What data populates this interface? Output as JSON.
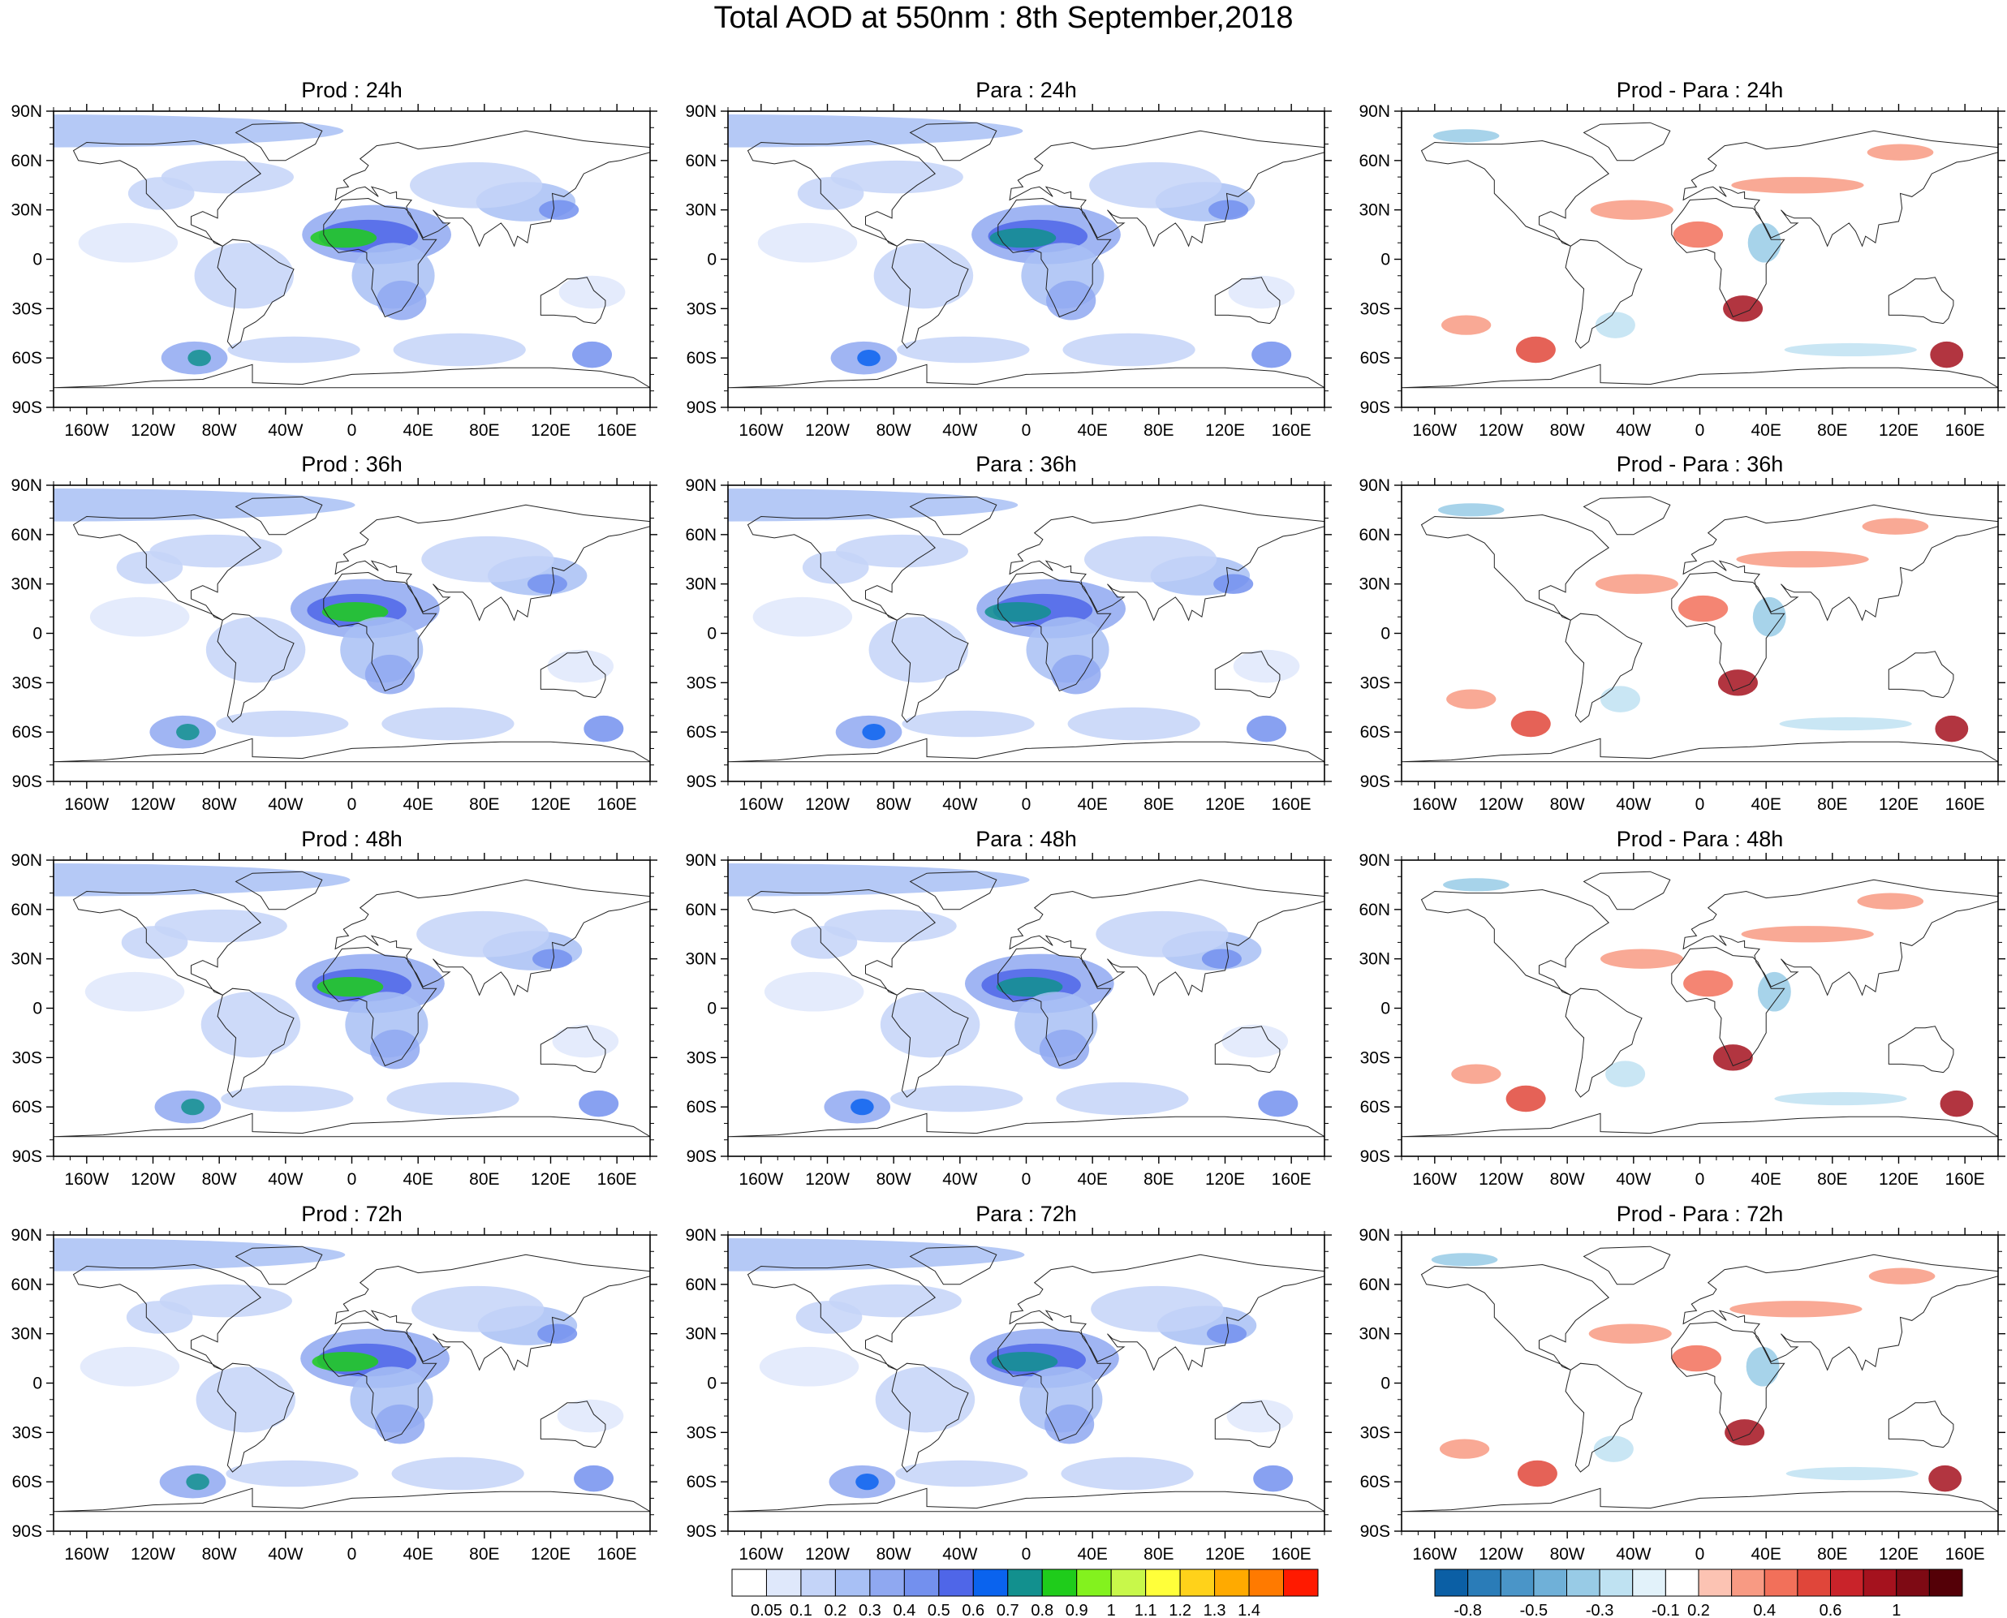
{
  "title": "Total AOD at 550nm : 8th September,2018",
  "panels": [
    {
      "row": 0,
      "col": 0,
      "title": "Prod : 24h",
      "kind": "aod"
    },
    {
      "row": 0,
      "col": 1,
      "title": "Para : 24h",
      "kind": "aod"
    },
    {
      "row": 0,
      "col": 2,
      "title": "Prod - Para : 24h",
      "kind": "diff"
    },
    {
      "row": 1,
      "col": 0,
      "title": "Prod : 36h",
      "kind": "aod"
    },
    {
      "row": 1,
      "col": 1,
      "title": "Para : 36h",
      "kind": "aod"
    },
    {
      "row": 1,
      "col": 2,
      "title": "Prod - Para : 36h",
      "kind": "diff"
    },
    {
      "row": 2,
      "col": 0,
      "title": "Prod : 48h",
      "kind": "aod"
    },
    {
      "row": 2,
      "col": 1,
      "title": "Para : 48h",
      "kind": "aod"
    },
    {
      "row": 2,
      "col": 2,
      "title": "Prod - Para : 48h",
      "kind": "diff"
    },
    {
      "row": 3,
      "col": 0,
      "title": "Prod : 72h",
      "kind": "aod"
    },
    {
      "row": 3,
      "col": 1,
      "title": "Para : 72h",
      "kind": "aod"
    },
    {
      "row": 3,
      "col": 2,
      "title": "Prod - Para : 72h",
      "kind": "diff"
    }
  ],
  "lat_ticks": [
    "90N",
    "60N",
    "30N",
    "0",
    "30S",
    "60S",
    "90S"
  ],
  "lon_ticks": [
    "160W",
    "120W",
    "80W",
    "40W",
    "0",
    "40E",
    "80E",
    "120E",
    "160E"
  ],
  "aod_colorbar": {
    "labels": [
      "0.05",
      "0.1",
      "0.2",
      "0.3",
      "0.4",
      "0.5",
      "0.6",
      "0.7",
      "0.8",
      "0.9",
      "1",
      "1.1",
      "1.2",
      "1.3",
      "1.4"
    ],
    "colors": [
      "#ffffff",
      "#dfe8fb",
      "#c4d4f8",
      "#a8c0f5",
      "#8fa8f1",
      "#7390ee",
      "#4f66e8",
      "#0a63ee",
      "#12908e",
      "#1fcc1b",
      "#83f21e",
      "#c8f84a",
      "#ffff3a",
      "#ffd21a",
      "#ffaa00",
      "#ff7a00",
      "#ff1a00"
    ]
  },
  "diff_colorbar": {
    "labels": [
      "-0.8",
      "-0.5",
      "-0.3",
      "-0.1",
      "0.2",
      "0.4",
      "0.6",
      "1"
    ],
    "colors": [
      "#0b5fa5",
      "#2a7cb8",
      "#4a95c8",
      "#6fb0d8",
      "#98cbe6",
      "#bfe2f2",
      "#e2f2fa",
      "#ffffff",
      "#fcc3b3",
      "#f89a83",
      "#f2705a",
      "#e0463a",
      "#c9232a",
      "#a5121e",
      "#7e0a14",
      "#540007"
    ]
  }
}
